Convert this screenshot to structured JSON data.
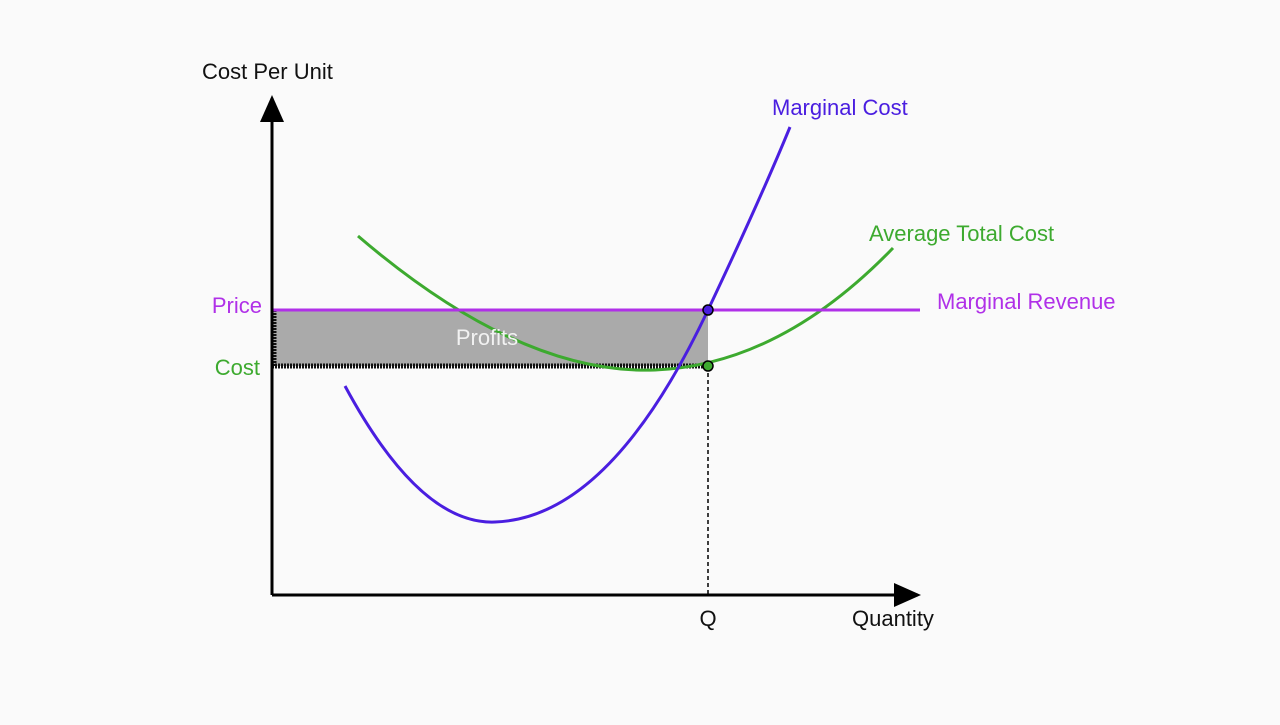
{
  "y_axis_label": "Cost Per Unit",
  "x_axis_label": "Quantity",
  "labels": {
    "price": "Price",
    "cost": "Cost",
    "q": "Q",
    "profits": "Profits"
  },
  "curves": {
    "marginal_cost": "Marginal Cost",
    "average_total_cost": "Average Total Cost",
    "marginal_revenue": "Marginal Revenue"
  }
}
